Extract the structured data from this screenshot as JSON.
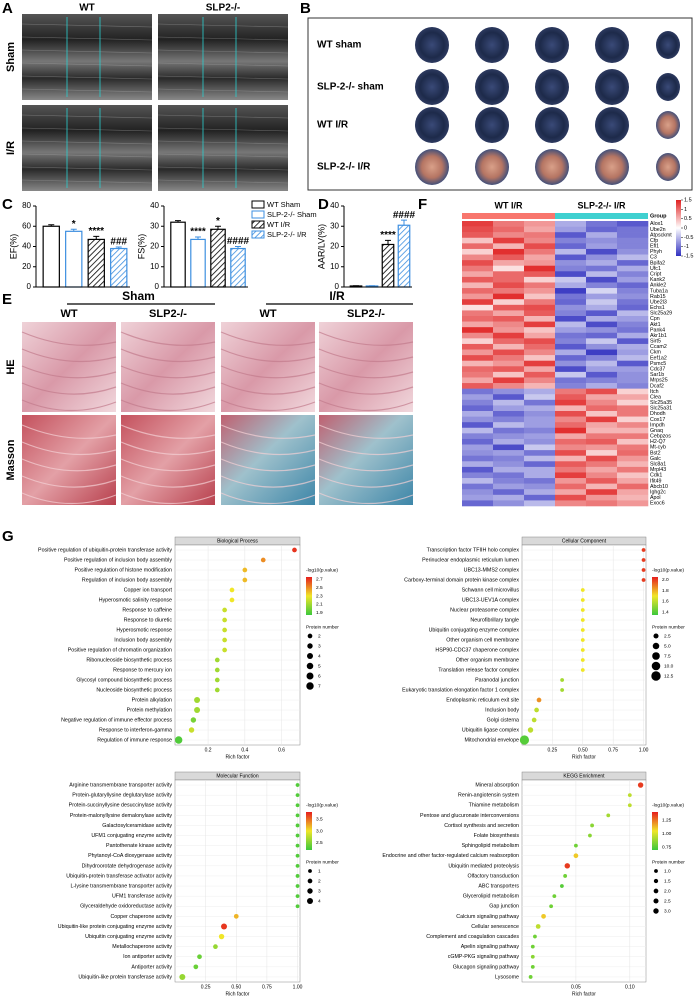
{
  "panels": {
    "A": {
      "label": "A",
      "columns": [
        "WT",
        "SLP2-/-"
      ],
      "rows": [
        "Sham",
        "I/R"
      ]
    },
    "B": {
      "label": "B",
      "rows": [
        "WT sham",
        "SLP-2-/- sham",
        "WT I/R",
        "SLP-2-/- I/R"
      ]
    },
    "C": {
      "label": "C"
    },
    "D": {
      "label": "D"
    },
    "E": {
      "label": "E",
      "groups": [
        "Sham",
        "I/R"
      ],
      "columns": [
        "WT",
        "SLP2-/-",
        "WT",
        "SLP2-/-"
      ],
      "rows": [
        "HE",
        "Masson"
      ]
    },
    "F": {
      "label": "F"
    },
    "G": {
      "label": "G"
    }
  },
  "legend": [
    {
      "name": "WT Sham",
      "color": "#000000",
      "hatch": false
    },
    {
      "name": "SLP-2-/- Sham",
      "color": "#3d8fe0",
      "hatch": false
    },
    {
      "name": "WT I/R",
      "color": "#000000",
      "hatch": true
    },
    {
      "name": "SLP-2-/- I/R",
      "color": "#3d8fe0",
      "hatch": true
    }
  ],
  "chart_data": [
    {
      "type": "bar",
      "ylabel": "EF(%)",
      "ylim": [
        0,
        80
      ],
      "yticks": [
        0,
        20,
        40,
        60,
        80
      ],
      "values": [
        60,
        55,
        47,
        38
      ],
      "errors": [
        1.5,
        2,
        3,
        1.5
      ],
      "annotations": [
        null,
        "*",
        "****",
        "###"
      ]
    },
    {
      "type": "bar",
      "ylabel": "FS(%)",
      "ylim": [
        0,
        40
      ],
      "yticks": [
        0,
        10,
        20,
        30,
        40
      ],
      "values": [
        32,
        23.5,
        28.5,
        19
      ],
      "errors": [
        0.8,
        1.2,
        1.5,
        1
      ],
      "annotations": [
        null,
        "****",
        "*",
        "####"
      ]
    },
    {
      "type": "bar",
      "ylabel": "AAR/LV(%)",
      "ylim": [
        0,
        40
      ],
      "yticks": [
        0,
        10,
        20,
        30,
        40
      ],
      "values": [
        0.5,
        0.5,
        21,
        30.5
      ],
      "errors": [
        0.1,
        0.1,
        2,
        2.5
      ],
      "annotations": [
        null,
        null,
        "****",
        "####"
      ]
    },
    {
      "type": "heatmap",
      "group_title": "Group",
      "groups": [
        {
          "name": "WT I/R",
          "color": "#f8766d"
        },
        {
          "name": "SLP-2-/- I/R",
          "color": "#3fd0d0"
        }
      ],
      "clim": [
        -1.5,
        1.5
      ],
      "cticks": [
        1.5,
        1,
        0.5,
        0,
        -0.5,
        -1,
        -1.5
      ],
      "rows": [
        "Alox1",
        "Ube2n",
        "Atpsckmt",
        "Cfp",
        "Efl1",
        "Phyh",
        "C3",
        "Bpifa2",
        "Ufc1",
        "Cript",
        "Kank2",
        "Ankle2",
        "Tuba1a",
        "Rab15",
        "Ube2l3",
        "Echs1",
        "Slc25a29",
        "Cpn",
        "Akt1",
        "Pank4",
        "Akr1b1",
        "Sirt5",
        "Ccam2",
        "Ckm",
        "Eef1a2",
        "Psmc5",
        "Cdc37",
        "Sar1b",
        "Mrps25",
        "Dcaf2",
        "Itch",
        "Clea",
        "Slc25a35",
        "Slc25a31",
        "Dhodh",
        "Cox17",
        "Impdh",
        "Gnaq",
        "Cebpzos",
        "H2-Q7",
        "Mt-cyb",
        "Bst2",
        "Galc",
        "Slc8a1",
        "Mrpl43",
        "Cdk1",
        "Ifit49",
        "Abcb10",
        "Ighg2c",
        "Apol",
        "Exoc6"
      ],
      "values": [
        [
          1.3,
          0.9,
          0.7,
          -0.6,
          -1.0,
          -1.2
        ],
        [
          1.2,
          1.0,
          0.6,
          -0.7,
          -1.1,
          -1.0
        ],
        [
          1.1,
          0.8,
          0.9,
          -1.2,
          -0.6,
          -1.0
        ],
        [
          0.4,
          1.3,
          0.8,
          -0.9,
          -0.8,
          -0.9
        ],
        [
          1.0,
          0.5,
          1.2,
          -1.1,
          -0.7,
          -0.9
        ],
        [
          0.3,
          1.4,
          0.9,
          -0.5,
          -1.3,
          -0.8
        ],
        [
          0.8,
          1.1,
          0.6,
          -1.2,
          -0.8,
          -0.5
        ],
        [
          1.2,
          0.6,
          0.7,
          -0.8,
          -0.6,
          -1.1
        ],
        [
          0.9,
          0.2,
          1.4,
          -0.9,
          -1.0,
          -0.6
        ],
        [
          0.6,
          1.0,
          1.1,
          -1.3,
          -0.5,
          -0.9
        ],
        [
          1.1,
          1.0,
          0.3,
          -0.4,
          -1.3,
          -0.7
        ],
        [
          0.5,
          1.2,
          0.9,
          -0.6,
          -0.9,
          -1.1
        ],
        [
          1.0,
          0.9,
          0.7,
          -1.4,
          -0.3,
          -0.9
        ],
        [
          0.7,
          1.4,
          0.4,
          -1.0,
          -0.7,
          -0.8
        ],
        [
          1.3,
          0.3,
          0.9,
          -1.1,
          -0.4,
          -1.0
        ],
        [
          0.2,
          1.1,
          1.2,
          -0.8,
          -0.6,
          -1.1
        ],
        [
          0.9,
          0.6,
          1.1,
          -0.9,
          -1.2,
          -0.5
        ],
        [
          1.0,
          1.1,
          0.5,
          -1.3,
          -0.6,
          -0.7
        ],
        [
          0.6,
          0.8,
          1.3,
          -0.5,
          -1.3,
          -0.9
        ],
        [
          1.4,
          0.7,
          0.4,
          -0.7,
          -0.8,
          -1.0
        ],
        [
          0.8,
          1.3,
          0.6,
          -1.0,
          -1.1,
          -0.6
        ],
        [
          0.3,
          1.0,
          1.2,
          -0.9,
          -0.4,
          -1.2
        ],
        [
          1.1,
          0.5,
          1.0,
          -1.2,
          -0.8,
          -0.6
        ],
        [
          0.7,
          1.2,
          0.8,
          -0.6,
          -1.4,
          -0.7
        ],
        [
          1.2,
          0.9,
          0.4,
          -1.1,
          -0.9,
          -0.5
        ],
        [
          0.5,
          0.7,
          1.3,
          -0.8,
          -0.5,
          -1.2
        ],
        [
          1.0,
          1.1,
          0.6,
          -1.3,
          -0.7,
          -0.7
        ],
        [
          0.9,
          0.4,
          1.1,
          -0.4,
          -1.2,
          -0.8
        ],
        [
          0.6,
          1.3,
          0.8,
          -1.0,
          -0.9,
          -0.8
        ],
        [
          1.1,
          0.8,
          0.5,
          -0.9,
          -0.6,
          -0.9
        ],
        [
          -1.0,
          -0.8,
          -0.6,
          0.9,
          1.2,
          0.3
        ],
        [
          -0.7,
          -1.2,
          -0.4,
          1.1,
          0.6,
          0.6
        ],
        [
          -0.9,
          -0.5,
          -1.0,
          1.3,
          0.8,
          0.3
        ],
        [
          -1.1,
          -0.7,
          -0.6,
          0.5,
          1.0,
          0.9
        ],
        [
          -0.6,
          -1.1,
          -0.8,
          1.2,
          0.4,
          0.9
        ],
        [
          -0.8,
          -0.9,
          -0.7,
          0.8,
          1.3,
          0.3
        ],
        [
          -1.2,
          -0.5,
          -0.7,
          1.0,
          0.6,
          0.8
        ],
        [
          -0.5,
          -1.0,
          -0.9,
          1.4,
          0.5,
          0.5
        ],
        [
          -0.9,
          -0.8,
          -0.7,
          0.6,
          0.9,
          0.9
        ],
        [
          -1.1,
          -0.6,
          -0.8,
          1.0,
          1.1,
          0.4
        ],
        [
          -0.7,
          -1.3,
          -0.4,
          0.8,
          0.7,
          0.9
        ],
        [
          -0.8,
          -0.7,
          -1.0,
          1.2,
          0.3,
          1.0
        ],
        [
          -1.0,
          -0.9,
          -0.5,
          0.5,
          1.2,
          0.7
        ],
        [
          -0.6,
          -0.8,
          -1.1,
          1.1,
          0.9,
          0.5
        ],
        [
          -1.2,
          -0.6,
          -0.6,
          0.9,
          0.6,
          0.9
        ],
        [
          -0.9,
          -1.0,
          -0.6,
          1.3,
          0.8,
          0.4
        ],
        [
          -0.5,
          -0.9,
          -1.0,
          0.7,
          1.1,
          0.6
        ],
        [
          -1.0,
          -0.7,
          -0.8,
          1.0,
          0.5,
          1.0
        ],
        [
          -0.8,
          -1.1,
          -0.6,
          0.6,
          1.3,
          0.6
        ],
        [
          -0.7,
          -0.6,
          -1.1,
          1.2,
          0.7,
          0.5
        ],
        [
          -1.1,
          -0.8,
          -0.5,
          0.8,
          0.9,
          0.7
        ]
      ]
    },
    {
      "type": "dot",
      "title": "Biological Process",
      "xlabel": "Rich factor",
      "size_title": "Protein number",
      "color_title": "-log10(p.value)",
      "terms": [
        "Positive regulation of ubiquitin-protein transferase activity",
        "Positive regulation of inclusion body assembly",
        "Positive regulation of histone modification",
        "Regulation of inclusion body assembly",
        "Copper ion transport",
        "Hyperosmotic salinity response",
        "Response to caffeine",
        "Response to diuretic",
        "Hyperosmotic response",
        "Inclusion body assembly",
        "Positive regulation of chromatin organization",
        "Ribonucleoside biosynthetic process",
        "Response to mercury ion",
        "Glycosyl compound biosynthetic process",
        "Nucleoside biosynthetic process",
        "Protein alkylation",
        "Protein methylation",
        "Negative regulation of immune effector process",
        "Response to interferon-gamma",
        "Regulation of immune response"
      ],
      "values": [
        0.67,
        0.5,
        0.4,
        0.4,
        0.33,
        0.33,
        0.29,
        0.29,
        0.29,
        0.29,
        0.29,
        0.25,
        0.25,
        0.25,
        0.25,
        0.14,
        0.14,
        0.12,
        0.11,
        0.04
      ],
      "sizes": [
        2,
        2,
        2,
        2,
        2,
        2,
        2,
        2,
        2,
        2,
        2,
        2,
        2,
        2,
        2,
        4,
        4,
        3,
        3,
        7
      ],
      "colors": [
        2.7,
        2.5,
        2.4,
        2.4,
        2.3,
        2.3,
        2.2,
        2.2,
        2.2,
        2.2,
        2.2,
        2.1,
        2.1,
        2.1,
        2.1,
        2.1,
        2.1,
        2.0,
        2.2,
        1.9
      ],
      "xlim": [
        0.02,
        0.7
      ],
      "xticks": [
        0.2,
        0.4,
        0.6
      ],
      "clim": [
        1.85,
        2.75
      ],
      "cticks": [
        2.7,
        2.5,
        2.3,
        2.1,
        1.9
      ],
      "sticks": [
        2,
        3,
        4,
        5,
        6,
        7
      ]
    },
    {
      "type": "dot",
      "title": "Cellular Component",
      "xlabel": "Rich factor",
      "size_title": "Protein number",
      "color_title": "-log10(p.value)",
      "terms": [
        "Transcription factor TFIIH holo complex",
        "Perinuclear endoplasmic reticulum lumen",
        "UBC13-MMS2 complex",
        "Carboxy-terminal domain protein kinase complex",
        "Schwann cell microvillus",
        "UBC13-UEV1A complex",
        "Nuclear proteasome complex",
        "Neurofibrillary tangle",
        "Ubiquitin conjugating enzyme complex",
        "Other organism cell membrane",
        "HSP90-CDC37 chaperone complex",
        "Other organism membrane",
        "Translation release factor complex",
        "Paranodal junction",
        "Eukaryotic translation elongation factor 1 complex",
        "Endoplasmic reticulum exit site",
        "Inclusion body",
        "Golgi cisterna",
        "Ubiquitin ligase complex",
        "Mitochondrial envelope"
      ],
      "values": [
        1,
        1,
        1,
        1,
        0.5,
        0.5,
        0.5,
        0.5,
        0.5,
        0.5,
        0.5,
        0.5,
        0.5,
        0.33,
        0.33,
        0.14,
        0.12,
        0.1,
        0.07,
        0.02
      ],
      "sizes": [
        1,
        1,
        1,
        1,
        1,
        1,
        1,
        1,
        1,
        1,
        1,
        1,
        1,
        1,
        1,
        2,
        2,
        2,
        3,
        12
      ],
      "colors": [
        2.0,
        2.0,
        2.0,
        2.0,
        1.7,
        1.7,
        1.7,
        1.7,
        1.7,
        1.7,
        1.7,
        1.7,
        1.7,
        1.55,
        1.55,
        1.85,
        1.6,
        1.6,
        1.6,
        1.4
      ],
      "xlim": [
        0,
        1.02
      ],
      "xticks": [
        0.25,
        {
          "value": 0.5,
          "label": "0.50"
        },
        0.75,
        {
          "value": 1,
          "label": "1.00"
        }
      ],
      "clim": [
        1.35,
        2.05
      ],
      "cticks": [
        {
          "value": 2,
          "label": "2.0"
        },
        1.8,
        1.6,
        1.4
      ],
      "sticks": [
        2.5,
        {
          "value": 5,
          "label": "5.0"
        },
        7.5,
        {
          "value": 10,
          "label": "10.0"
        },
        12.5
      ]
    },
    {
      "type": "dot",
      "title": "Molecular Function",
      "xlabel": "Rich factor",
      "size_title": "Protein number",
      "color_title": "-log10(p.value)",
      "terms": [
        "Arginine transmembrane transporter activity",
        "Protein-glutaryllysine deglutarylase activity",
        "Protein-succinyllysine desuccinylase activity",
        "Protein-malonyllysine demalonylase activity",
        "Galactosylceramidase activity",
        "UFM1 conjugating enzyme activity",
        "Pantothenate kinase activity",
        "Phytanoyl-CoA dioxygenase activity",
        "Dihydroorotate dehydrogenase activity",
        "Ubiquitin-protein transferase activator activity",
        "L-lysine transmembrane transporter activity",
        "UFM1 transferase activity",
        "Glyceraldehyde oxidoreductase activity",
        "Copper chaperone activity",
        "Ubiquitin-like protein conjugating enzyme activity",
        "Ubiquitin conjugating enzyme activity",
        "Metallochaperone activity",
        "Ion antiporter activity",
        "Antiporter activity",
        "Ubiquitin-like protein transferase activity"
      ],
      "values": [
        1,
        1,
        1,
        1,
        1,
        1,
        1,
        1,
        1,
        1,
        1,
        1,
        1,
        0.5,
        0.4,
        0.38,
        0.33,
        0.2,
        0.17,
        0.06
      ],
      "sizes": [
        1,
        1,
        1,
        1,
        1,
        1,
        1,
        1,
        1,
        1,
        1,
        1,
        1,
        2,
        4,
        3,
        2,
        2,
        2,
        4
      ],
      "colors": [
        2.3,
        2.3,
        2.3,
        2.3,
        2.3,
        2.3,
        2.3,
        2.3,
        2.3,
        2.3,
        2.3,
        2.3,
        2.3,
        3.2,
        3.7,
        3.0,
        2.6,
        2.4,
        2.4,
        2.6
      ],
      "xlim": [
        0,
        1.02
      ],
      "xticks": [
        0.25,
        {
          "value": 0.5,
          "label": "0.50"
        },
        0.75,
        {
          "value": 1,
          "label": "1.00"
        }
      ],
      "clim": [
        2.2,
        3.8
      ],
      "cticks": [
        3.5,
        {
          "value": 3,
          "label": "3.0"
        },
        2.5
      ],
      "sticks": [
        1,
        2,
        3,
        4
      ]
    },
    {
      "type": "dot",
      "title": "KEGG Enrichment",
      "xlabel": "Rich factor",
      "size_title": "Protein number",
      "color_title": "-log10(p.value)",
      "terms": [
        "Mineral absorption",
        "Renin-angiotensin system",
        "Thiamine metabolism",
        "Pentose and glucuronate interconversions",
        "Cortisol synthesis and secretion",
        "Folate biosynthesis",
        "Sphingolipid metabolism",
        "Endocrine and other factor-regulated calcium reabsorption",
        "Ubiquitin mediated proteolysis",
        "Olfactory transduction",
        "ABC transporters",
        "Glycerolipid metabolism",
        "Gap junction",
        "Calcium signaling pathway",
        "Cellular senescence",
        "Complement and coagulation cascades",
        "Apelin signaling pathway",
        "cGMP-PKG signaling pathway",
        "Glucagon signaling pathway",
        "Lysosome"
      ],
      "values": [
        0.11,
        0.1,
        0.1,
        0.08,
        0.065,
        0.063,
        0.05,
        0.05,
        0.042,
        0.04,
        0.037,
        0.03,
        0.027,
        0.02,
        0.015,
        0.012,
        0.01,
        0.01,
        0.01,
        0.008
      ],
      "sizes": [
        3,
        1,
        1,
        1,
        1,
        1,
        1,
        2,
        3,
        1,
        1,
        1,
        1,
        2,
        2,
        1,
        1,
        1,
        1,
        1
      ],
      "colors": [
        1.35,
        0.95,
        0.95,
        0.9,
        0.85,
        0.85,
        0.8,
        1.1,
        1.35,
        0.8,
        0.75,
        0.8,
        0.8,
        1.1,
        0.95,
        0.8,
        0.8,
        0.85,
        0.8,
        0.8
      ],
      "xlim": [
        0,
        0.115
      ],
      "xticks": [
        0.05,
        {
          "value": 0.1,
          "label": "0.10"
        }
      ],
      "clim": [
        0.7,
        1.4
      ],
      "cticks": [
        1.25,
        {
          "value": 1,
          "label": "1.00"
        },
        0.75
      ],
      "sticks": [
        {
          "value": 1,
          "label": "1.0"
        },
        1.5,
        {
          "value": 2,
          "label": "2.0"
        },
        2.5,
        {
          "value": 3,
          "label": "3.0"
        }
      ]
    }
  ]
}
